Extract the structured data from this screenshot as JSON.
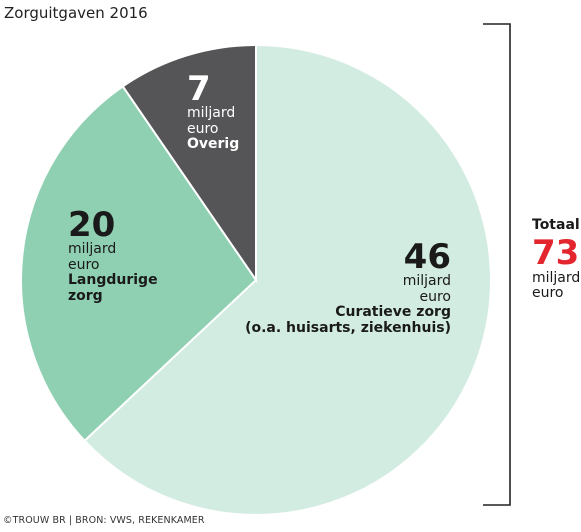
{
  "title": "Zorguitgaven 2016",
  "footer": "©TROUW BR | BRON: VWS, REKENKAMER",
  "colors": {
    "curatieve": "#d2ece1",
    "langdurige": "#8fd0b2",
    "overig": "#555456",
    "accent": "#e3262d",
    "bracket": "#222222"
  },
  "chart_data": {
    "type": "pie",
    "title": "Zorguitgaven 2016",
    "unit": "miljard euro",
    "slices": [
      {
        "label": "Curatieve zorg (o.a. huisarts, ziekenhuis)",
        "value": 46,
        "unit_line1": "miljard",
        "unit_line2": "euro",
        "cat_line1": "Curatieve zorg",
        "cat_line2": "(o.a. huisarts, ziekenhuis)",
        "color": "#d2ece1"
      },
      {
        "label": "Langdurige zorg",
        "value": 20,
        "unit_line1": "miljard",
        "unit_line2": "euro",
        "cat_line1": "Langdurige",
        "cat_line2": "zorg",
        "color": "#8fd0b2"
      },
      {
        "label": "Overig",
        "value": 7,
        "unit_line1": "miljard",
        "unit_line2": "euro",
        "cat_line1": "Overig",
        "cat_line2": "",
        "color": "#555456"
      }
    ],
    "total": {
      "label": "Totaal",
      "value": 73,
      "unit_line1": "miljard",
      "unit_line2": "euro"
    }
  }
}
